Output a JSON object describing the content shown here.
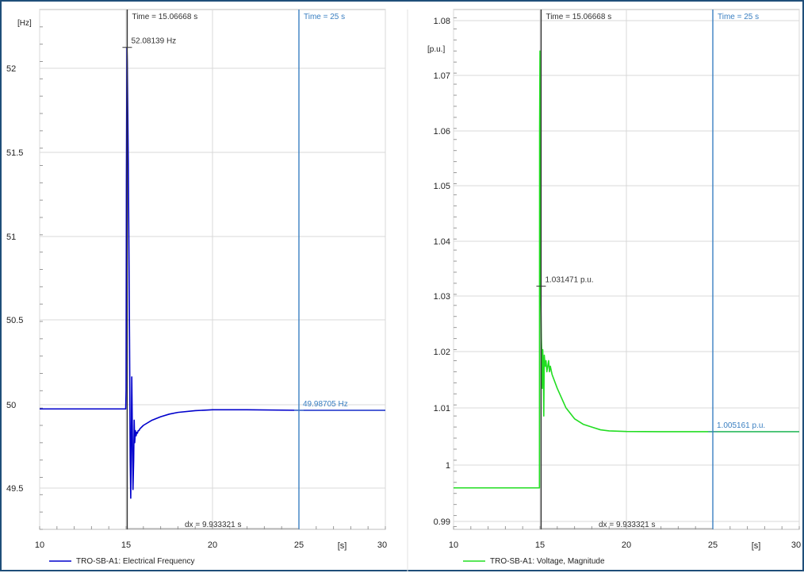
{
  "chart_data": [
    {
      "type": "line",
      "title": "",
      "xlabel": "[s]",
      "ylabel": "[Hz]",
      "xlim": [
        10,
        30
      ],
      "ylim": [
        49.3,
        52.3
      ],
      "x_ticks": [
        "10",
        "15",
        "20",
        "25",
        "30"
      ],
      "y_ticks": [
        "49.5",
        "50",
        "50.5",
        "51",
        "51.5",
        "52"
      ],
      "grid": true,
      "legend_position": "bottom-left",
      "series": [
        {
          "name": "TRO-SB-A1: Electrical Frequency",
          "color": "#0000cc",
          "x": [
            10,
            14.98,
            15.0,
            15.02,
            15.05,
            15.07,
            15.1,
            15.13,
            15.16,
            15.2,
            15.24,
            15.27,
            15.3,
            15.33,
            15.36,
            15.4,
            15.44,
            15.47,
            15.5,
            15.54,
            15.58,
            15.62,
            15.66,
            15.7,
            15.75,
            15.8,
            16.0,
            16.5,
            17.0,
            17.5,
            18.0,
            19.0,
            20.0,
            21.0,
            22.0,
            25.0,
            30.0
          ],
          "y": [
            49.995,
            49.995,
            50.1,
            51.3,
            52.08,
            52.0,
            51.7,
            51.4,
            51.0,
            50.4,
            49.7,
            49.48,
            49.8,
            50.18,
            49.9,
            49.53,
            49.7,
            49.93,
            49.8,
            49.87,
            49.84,
            49.86,
            49.855,
            49.87,
            49.87,
            49.88,
            49.9,
            49.93,
            49.95,
            49.965,
            49.975,
            49.985,
            49.99,
            49.99,
            49.99,
            49.98705,
            49.987
          ]
        }
      ],
      "cursors": [
        {
          "x": 15.06668,
          "label": "Time = 15.06668 s",
          "color": "#333333"
        },
        {
          "x": 25,
          "label": "Time = 25 s",
          "color": "#3a7fc1"
        }
      ],
      "annotations": [
        {
          "x": 15.06668,
          "y": 52.08139,
          "text": "52.08139 Hz",
          "color": "#333333"
        },
        {
          "x": 25,
          "y": 49.98705,
          "text": "49.98705 Hz",
          "color": "#3a7fc1"
        }
      ],
      "dx_label": "dx = 9.933321 s"
    },
    {
      "type": "line",
      "title": "",
      "xlabel": "[s]",
      "ylabel": "[p.u.]",
      "xlim": [
        10,
        30
      ],
      "ylim": [
        0.9875,
        1.0815
      ],
      "x_ticks": [
        "10",
        "15",
        "20",
        "25",
        "30"
      ],
      "y_ticks": [
        "0.99",
        "1",
        "1.01",
        "1.02",
        "1.03",
        "1.04",
        "1.05",
        "1.06",
        "1.07",
        "1.08"
      ],
      "grid": true,
      "legend_position": "bottom-left",
      "series": [
        {
          "name": "TRO-SB-A1: Voltage, Magnitude",
          "color": "#22dd22",
          "x": [
            10,
            14.97,
            14.98,
            15.0,
            15.02,
            15.05,
            15.08,
            15.1,
            15.13,
            15.16,
            15.2,
            15.22,
            15.25,
            15.3,
            15.35,
            15.4,
            15.45,
            15.5,
            15.55,
            15.6,
            15.7,
            16.0,
            16.5,
            17.0,
            17.5,
            18.0,
            18.5,
            19.0,
            20.0,
            22.0,
            25.0,
            30.0
          ],
          "y": [
            0.995,
            0.995,
            1.06,
            1.074,
            1.031,
            1.028,
            1.022,
            1.02,
            1.013,
            1.02,
            1.016,
            1.008,
            1.019,
            1.017,
            1.018,
            1.016,
            1.017,
            1.018,
            1.016,
            1.017,
            1.0155,
            1.013,
            1.0095,
            1.0075,
            1.0065,
            1.006,
            1.0055,
            1.0053,
            1.0052,
            1.00516,
            1.005161,
            1.00516
          ]
        }
      ],
      "cursors": [
        {
          "x": 15.06668,
          "label": "Time = 15.06668 s",
          "color": "#333333"
        },
        {
          "x": 25,
          "label": "Time = 25 s",
          "color": "#3a7fc1"
        }
      ],
      "annotations": [
        {
          "x": 15.06668,
          "y": 1.031471,
          "text": "1.031471 p.u.",
          "color": "#333333"
        },
        {
          "x": 25,
          "y": 1.005161,
          "text": "1.005161 p.u.",
          "color": "#3a7fc1"
        }
      ],
      "dx_label": "dx = 9.933321 s"
    }
  ]
}
